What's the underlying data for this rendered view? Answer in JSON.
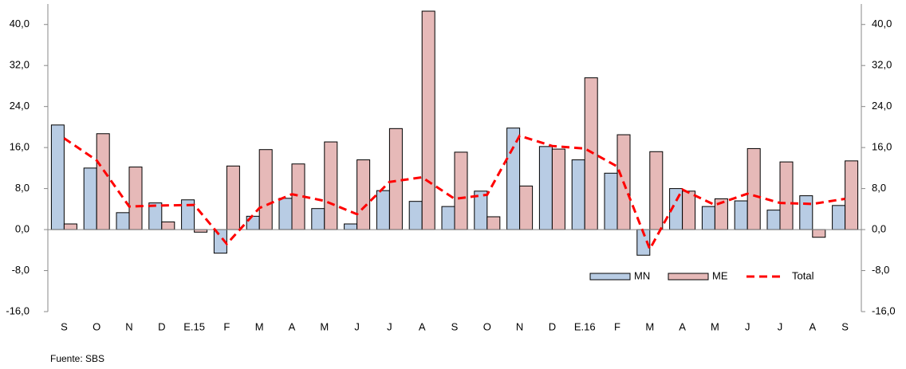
{
  "chart_data": {
    "type": "bar",
    "categories": [
      "S",
      "O",
      "N",
      "D",
      "E.15",
      "F",
      "M",
      "A",
      "M",
      "J",
      "J",
      "A",
      "S",
      "O",
      "N",
      "D",
      "E.16",
      "F",
      "M",
      "A",
      "M",
      "J",
      "J",
      "A",
      "S"
    ],
    "series": [
      {
        "name": "MN",
        "color": "#b8cce4",
        "values": [
          20.4,
          12.0,
          3.3,
          5.2,
          5.8,
          -4.6,
          2.6,
          6.1,
          4.1,
          1.1,
          7.6,
          5.5,
          4.5,
          7.5,
          19.8,
          16.2,
          13.6,
          11.0,
          -5.0,
          8.0,
          4.5,
          5.6,
          3.8,
          6.6,
          4.7
        ]
      },
      {
        "name": "ME",
        "color": "#e6b9b8",
        "values": [
          1.1,
          18.7,
          12.2,
          1.5,
          -0.5,
          12.4,
          15.6,
          12.8,
          17.1,
          13.6,
          19.7,
          42.6,
          15.1,
          2.5,
          8.5,
          15.7,
          29.6,
          18.5,
          15.2,
          7.5,
          6.0,
          15.8,
          13.2,
          -1.5,
          13.4
        ]
      },
      {
        "name": "Total",
        "color": "#ff0000",
        "type": "line",
        "dashed": true,
        "values": [
          17.8,
          13.5,
          4.5,
          4.7,
          4.8,
          -2.8,
          4.2,
          6.9,
          5.6,
          3.0,
          9.3,
          10.2,
          6.0,
          6.8,
          18.3,
          16.3,
          15.8,
          12.3,
          -3.8,
          7.8,
          4.8,
          7.0,
          5.2,
          5.0,
          6.0
        ]
      }
    ],
    "ylim": [
      -16,
      44
    ],
    "yticks": [
      {
        "value": -16,
        "label": "-16,0"
      },
      {
        "value": -8,
        "label": "-8,0"
      },
      {
        "value": 0,
        "label": "0,0"
      },
      {
        "value": 8,
        "label": "8,0"
      },
      {
        "value": 16,
        "label": "16,0"
      },
      {
        "value": 24,
        "label": "24,0"
      },
      {
        "value": 32,
        "label": "32,0"
      },
      {
        "value": 40,
        "label": "40,0"
      }
    ],
    "y2lim": [
      -16,
      44
    ],
    "y2ticks": [
      {
        "value": -16,
        "label": "-16,0"
      },
      {
        "value": -8,
        "label": "-8,0"
      },
      {
        "value": 0,
        "label": "0,0"
      },
      {
        "value": 8,
        "label": "8,0"
      },
      {
        "value": 16,
        "label": "16,0"
      },
      {
        "value": 24,
        "label": "24,0"
      },
      {
        "value": 32,
        "label": "32,0"
      },
      {
        "value": 40,
        "label": "40,0"
      }
    ],
    "legend": "lower right",
    "source": "Fuente: SBS"
  }
}
